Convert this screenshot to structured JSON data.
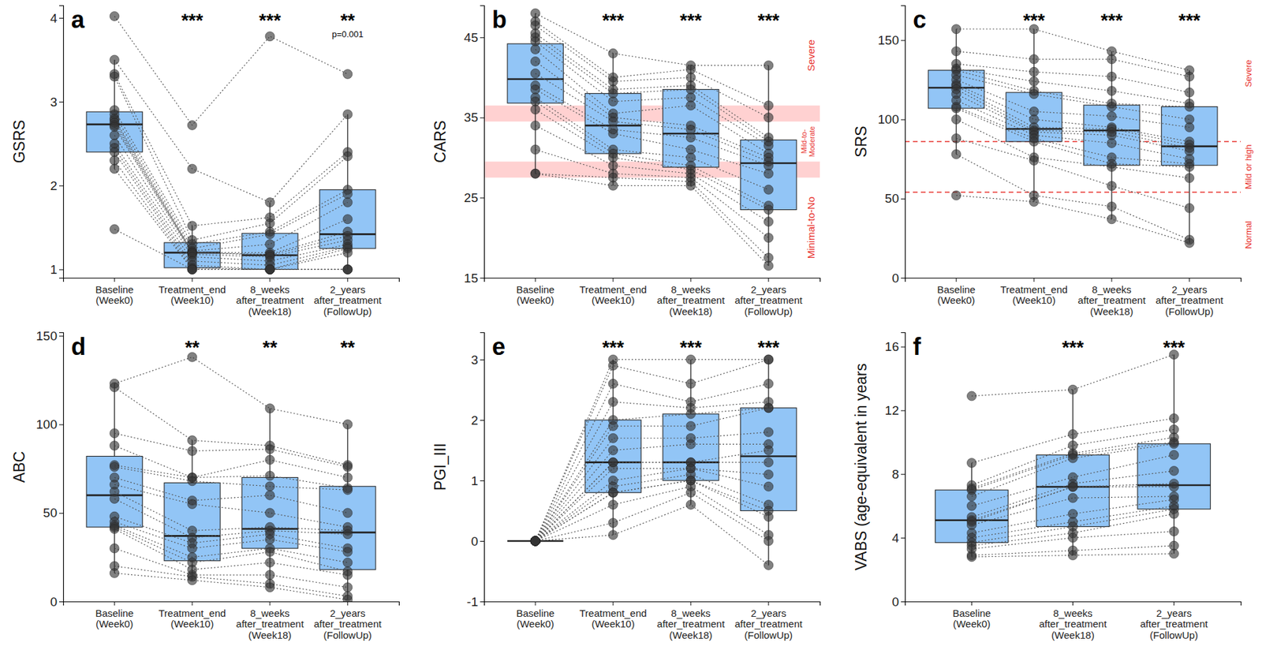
{
  "chart_data": [
    {
      "type": "box",
      "title": "a",
      "y_label": "GSRS",
      "color": "#92c5f6",
      "categories": [
        "Baseline\n(Week0)",
        "Treatment_end\n(Week10)",
        "8_weeks\nafter_treatment\n(Week18)",
        "2_years\nafter_treatment\n(FollowUp)"
      ],
      "annotations": [
        null,
        "***",
        "***",
        "**"
      ],
      "notes": [
        null,
        null,
        null,
        "p=0.001"
      ],
      "ylim": [
        0.9,
        4.15
      ],
      "yticks": [
        1,
        2,
        3,
        4
      ],
      "boxes": [
        {
          "min": 2.2,
          "q1": 2.4,
          "median": 2.73,
          "q3": 2.88,
          "max": 3.5
        },
        {
          "min": 1,
          "q1": 1.02,
          "median": 1.2,
          "q3": 1.32,
          "max": 1.52
        },
        {
          "min": 1,
          "q1": 1,
          "median": 1.17,
          "q3": 1.43,
          "max": 1.8
        },
        {
          "min": 1,
          "q1": 1.25,
          "median": 1.42,
          "q3": 1.95,
          "max": 2.85
        }
      ],
      "values": [
        [
          4.02,
          3.5,
          3.33,
          3.3,
          2.9,
          2.85,
          2.8,
          2.78,
          2.75,
          2.72,
          2.7,
          2.6,
          2.5,
          2.45,
          2.4,
          2.3,
          2.2,
          1.48
        ],
        [
          2.72,
          2.2,
          1.52,
          1.35,
          1.3,
          1.25,
          1.22,
          1.2,
          1.2,
          1.2,
          1.18,
          1.15,
          1.1,
          1.05,
          1.02,
          1,
          1,
          1
        ],
        [
          3.78,
          1.8,
          1.62,
          1.55,
          1.45,
          1.42,
          1.3,
          1.2,
          1.18,
          1.17,
          1.15,
          1.1,
          1.05,
          1,
          1,
          1,
          1,
          1
        ],
        [
          3.33,
          2.85,
          2.4,
          2.35,
          1.95,
          1.9,
          1.8,
          1.6,
          1.45,
          1.4,
          1.35,
          1.3,
          1.27,
          1.25,
          1.2,
          1,
          1,
          1
        ]
      ]
    },
    {
      "type": "box",
      "title": "b",
      "y_label": "CARS",
      "color": "#92c5f6",
      "categories": [
        "Baseline\n(Week0)",
        "Treatment_end\n(Week10)",
        "8_weeks\nafter_treatment\n(Week18)",
        "2_years\nafter_treatment\n(FollowUp)"
      ],
      "annotations": [
        null,
        "***",
        "***",
        "***"
      ],
      "ylim": [
        15,
        49
      ],
      "yticks": [
        15,
        25,
        35,
        45
      ],
      "bands": [
        {
          "from": 34.5,
          "to": 36.5
        },
        {
          "from": 27.5,
          "to": 29.5
        }
      ],
      "region_labels": [
        "Severe",
        "Mild-to-\nModerate",
        "Minimal-to-No"
      ],
      "boxes": [
        {
          "min": 28,
          "q1": 36.8,
          "median": 39.8,
          "q3": 44.2,
          "max": 48
        },
        {
          "min": 26.5,
          "q1": 30.5,
          "median": 34,
          "q3": 38,
          "max": 43
        },
        {
          "min": 26.5,
          "q1": 28.8,
          "median": 33,
          "q3": 38.5,
          "max": 41.5
        },
        {
          "min": 16.5,
          "q1": 23.5,
          "median": 29.3,
          "q3": 32.2,
          "max": 41.5
        }
      ],
      "values": [
        [
          48,
          47,
          46.5,
          45.5,
          45,
          44.5,
          43.5,
          42,
          40.5,
          39,
          38.5,
          37.5,
          37,
          36,
          34,
          31,
          28,
          28
        ],
        [
          43,
          40,
          39.5,
          38.5,
          38,
          37,
          35.5,
          35,
          34.5,
          33.5,
          33,
          31,
          30.5,
          30,
          29,
          28,
          27.5,
          26.5
        ],
        [
          41.5,
          41,
          40,
          39,
          38.5,
          37.5,
          36.5,
          34,
          33.5,
          32.5,
          31,
          30,
          29,
          28.5,
          28,
          27.5,
          27,
          26.5
        ],
        [
          41.5,
          36.5,
          35,
          32.5,
          32,
          31.5,
          30.5,
          30,
          29.5,
          29,
          28,
          26,
          24,
          23.5,
          22,
          20,
          17.5,
          16.5
        ]
      ]
    },
    {
      "type": "box",
      "title": "c",
      "y_label": "SRS",
      "color": "#92c5f6",
      "categories": [
        "Baseline\n(Week0)",
        "Treatment_end\n(Week10)",
        "8_weeks\nafter_treatment\n(Week18)",
        "2_years\nafter_treatment\n(FollowUp)"
      ],
      "annotations": [
        null,
        "***",
        "***",
        "***"
      ],
      "ylim": [
        0,
        172
      ],
      "yticks": [
        0,
        50,
        100,
        150
      ],
      "thresholds": [
        86,
        54
      ],
      "region_labels": [
        "Severe",
        "Mild or high",
        "Normal"
      ],
      "boxes": [
        {
          "min": 78,
          "q1": 107,
          "median": 120,
          "q3": 131,
          "max": 157
        },
        {
          "min": 48,
          "q1": 86,
          "median": 94,
          "q3": 117,
          "max": 157
        },
        {
          "min": 37,
          "q1": 71,
          "median": 93,
          "q3": 109,
          "max": 143
        },
        {
          "min": 22,
          "q1": 71,
          "median": 83,
          "q3": 108,
          "max": 131
        }
      ],
      "values": [
        [
          157,
          143,
          135,
          132,
          131,
          128,
          125,
          122,
          121,
          119,
          116,
          112,
          108,
          107,
          100,
          88,
          78,
          52
        ],
        [
          157,
          138,
          130,
          124,
          118,
          116,
          105,
          100,
          95,
          93,
          92,
          90,
          88,
          86,
          76,
          74,
          52,
          48
        ],
        [
          143,
          138,
          127,
          118,
          110,
          108,
          102,
          95,
          94,
          92,
          90,
          85,
          76,
          72,
          70,
          58,
          45,
          37
        ],
        [
          131,
          127,
          117,
          110,
          108,
          100,
          95,
          86,
          84,
          82,
          80,
          75,
          72,
          70,
          63,
          44,
          24,
          22
        ]
      ]
    },
    {
      "type": "box",
      "title": "d",
      "y_label": "ABC",
      "color": "#92c5f6",
      "categories": [
        "Baseline\n(Week0)",
        "Treatment_end\n(Week10)",
        "8_weeks\nafter_treatment\n(Week18)",
        "2_years\nafter_treatment\n(FollowUp)"
      ],
      "annotations": [
        null,
        "**",
        "**",
        "**"
      ],
      "ylim": [
        0,
        152
      ],
      "yticks": [
        0,
        50,
        100,
        150
      ],
      "boxes": [
        {
          "min": 16,
          "q1": 42,
          "median": 60,
          "q3": 82,
          "max": 123
        },
        {
          "min": 12,
          "q1": 23,
          "median": 37,
          "q3": 67,
          "max": 91
        },
        {
          "min": 8,
          "q1": 30,
          "median": 41,
          "q3": 70,
          "max": 109
        },
        {
          "min": 1,
          "q1": 18,
          "median": 39,
          "q3": 65,
          "max": 100
        }
      ],
      "values": [
        [
          123,
          121,
          95,
          88,
          77,
          76,
          70,
          66,
          62,
          58,
          48,
          45,
          43,
          42,
          41,
          30,
          20,
          16
        ],
        [
          138,
          91,
          85,
          70,
          70,
          68,
          57,
          55,
          40,
          36,
          33,
          30,
          25,
          22,
          18,
          15,
          14,
          12
        ],
        [
          109,
          88,
          86,
          80,
          71,
          65,
          60,
          50,
          42,
          40,
          38,
          35,
          30,
          28,
          22,
          15,
          10,
          8
        ],
        [
          100,
          77,
          76,
          70,
          64,
          63,
          50,
          42,
          40,
          38,
          30,
          28,
          22,
          17,
          15,
          8,
          3,
          1
        ]
      ]
    },
    {
      "type": "box",
      "title": "e",
      "y_label": "PGI_III",
      "color": "#92c5f6",
      "categories": [
        "Baseline\n(Week0)",
        "Treatment_end\n(Week10)",
        "8_weeks\nafter_treatment\n(Week18)",
        "2_years\nafter_treatment\n(FollowUp)"
      ],
      "annotations": [
        null,
        "***",
        "***",
        "***"
      ],
      "ylim": [
        -1,
        3.45
      ],
      "yticks": [
        -1,
        0,
        1,
        2,
        3
      ],
      "boxes": [
        {
          "min": 0,
          "q1": 0,
          "median": 0,
          "q3": 0,
          "max": 0
        },
        {
          "min": 0.1,
          "q1": 0.8,
          "median": 1.3,
          "q3": 2,
          "max": 3
        },
        {
          "min": 0.6,
          "q1": 1,
          "median": 1.3,
          "q3": 2.1,
          "max": 3
        },
        {
          "min": -0.4,
          "q1": 0.5,
          "median": 1.4,
          "q3": 2.2,
          "max": 3
        }
      ],
      "values": [
        [
          0,
          0,
          0,
          0,
          0,
          0,
          0,
          0,
          0,
          0,
          0,
          0,
          0,
          0,
          0,
          0,
          0,
          0
        ],
        [
          3,
          2.9,
          2.6,
          2.3,
          2,
          1.9,
          1.7,
          1.5,
          1.3,
          1.3,
          1.2,
          1,
          0.9,
          0.8,
          0.8,
          0.6,
          0.3,
          0.1
        ],
        [
          3,
          2.6,
          2.3,
          2.2,
          2.1,
          1.9,
          1.7,
          1.6,
          1.3,
          1.3,
          1.2,
          1.2,
          1.1,
          1,
          1,
          0.9,
          0.8,
          0.6
        ],
        [
          3,
          3,
          2.6,
          2.3,
          2.2,
          2.2,
          1.8,
          1.6,
          1.5,
          1.3,
          1.1,
          0.9,
          0.6,
          0.5,
          0.4,
          0.1,
          0,
          -0.4
        ]
      ]
    },
    {
      "type": "box",
      "title": "f",
      "y_label": "VABS (age-equivalent in years",
      "color": "#92c5f6",
      "categories": [
        "Baseline\n(Week0)",
        "8_weeks\nafter_treatment\n(Week18)",
        "2_years\nafter_treatment\n(FollowUp)"
      ],
      "annotations": [
        null,
        "***",
        "***"
      ],
      "ylim": [
        0,
        16.9
      ],
      "yticks": [
        0,
        4,
        8,
        12,
        16
      ],
      "boxes": [
        {
          "min": 2.8,
          "q1": 3.7,
          "median": 5.1,
          "q3": 7,
          "max": 8.7
        },
        {
          "min": 2.9,
          "q1": 4.7,
          "median": 7.2,
          "q3": 9.2,
          "max": 13.3
        },
        {
          "min": 3,
          "q1": 5.8,
          "median": 7.3,
          "q3": 9.9,
          "max": 15.5
        }
      ],
      "values": [
        [
          12.9,
          8.7,
          7.3,
          7.1,
          7,
          6.6,
          6,
          5.3,
          5.1,
          5,
          4.8,
          4.3,
          4,
          3.7,
          3.5,
          3.3,
          2.9,
          2.8
        ],
        [
          13.3,
          10.5,
          9.8,
          9.3,
          9.2,
          9,
          7.8,
          7.4,
          7.2,
          7.2,
          6.5,
          5.5,
          5,
          4.7,
          4.3,
          4,
          3.2,
          2.9
        ],
        [
          15.5,
          11.5,
          10.8,
          10.3,
          10,
          9.9,
          9.2,
          8.2,
          7.4,
          7.2,
          6.6,
          6.4,
          6,
          5.8,
          5.5,
          4.4,
          3.5,
          3
        ]
      ]
    }
  ]
}
